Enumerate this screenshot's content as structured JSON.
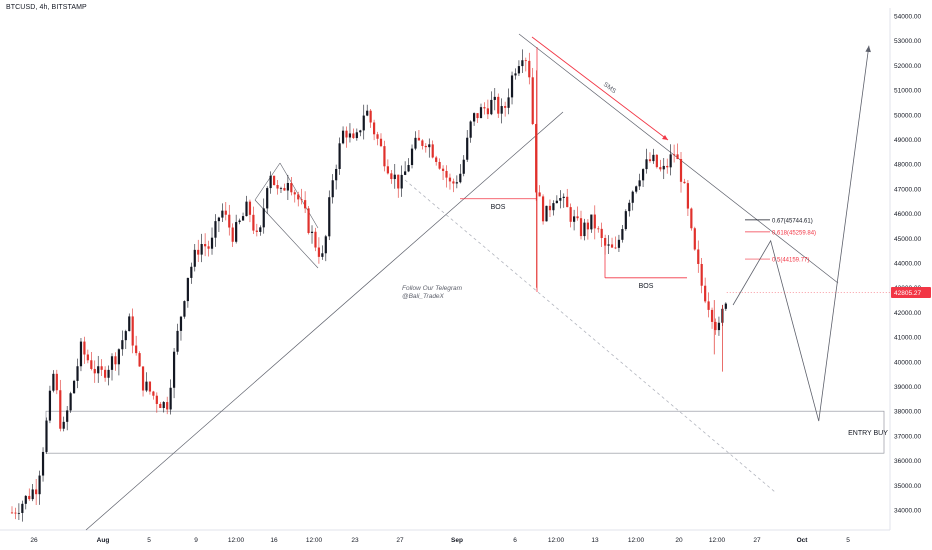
{
  "header": {
    "symbol_title": "BTCUSD, 4h, BITSTAMP"
  },
  "colors": {
    "up_candle": "#131722",
    "down_candle": "#e0312c",
    "price_tag_bg": "#f23645",
    "axis_text": "#131722",
    "annotation_red": "#f23645",
    "annotation_line": "#5d606b",
    "dashed_line": "#b2b5be",
    "background": "#ffffff"
  },
  "chart_data": {
    "type": "candlestick",
    "title": "BTCUSD, 4h, BITSTAMP",
    "current_price": 42805.27,
    "current_price_label": "42805.27",
    "y_axis": {
      "range": [
        33500,
        54500
      ],
      "tick_labels": [
        "54000.00",
        "53000.00",
        "52000.00",
        "51000.00",
        "50000.00",
        "49000.00",
        "48000.00",
        "47000.00",
        "46000.00",
        "45000.00",
        "44000.00",
        "43000.00",
        "42000.00",
        "41000.00",
        "40000.00",
        "39000.00",
        "38000.00",
        "37000.00",
        "36000.00",
        "35000.00",
        "34000.00"
      ],
      "tick_values": [
        54000,
        53000,
        52000,
        51000,
        50000,
        49000,
        48000,
        47000,
        46000,
        45000,
        44000,
        43000,
        42000,
        41000,
        40000,
        39000,
        38000,
        37000,
        36000,
        35000,
        34000
      ]
    },
    "x_axis": {
      "tick_labels": [
        "26",
        "Aug",
        "5",
        "9",
        "12:00",
        "16",
        "12:00",
        "23",
        "27",
        "Sep",
        "6",
        "12:00",
        "13",
        "12:00",
        "20",
        "12:00",
        "27",
        "Oct",
        "5"
      ],
      "tick_bold": [
        false,
        true,
        false,
        false,
        false,
        false,
        false,
        false,
        false,
        true,
        false,
        false,
        false,
        false,
        false,
        false,
        false,
        true,
        false
      ]
    },
    "price_path": [
      {
        "t": 0.0,
        "p": 33900
      },
      {
        "t": 0.6,
        "p": 34400
      },
      {
        "t": 1.2,
        "p": 35000
      },
      {
        "t": 1.6,
        "p": 37200
      },
      {
        "t": 2.0,
        "p": 39600
      },
      {
        "t": 2.4,
        "p": 37000
      },
      {
        "t": 2.9,
        "p": 39000
      },
      {
        "t": 3.3,
        "p": 40500
      },
      {
        "t": 4.2,
        "p": 39400
      },
      {
        "t": 5.0,
        "p": 40300
      },
      {
        "t": 5.6,
        "p": 41600
      },
      {
        "t": 6.2,
        "p": 39200
      },
      {
        "t": 6.9,
        "p": 38500
      },
      {
        "t": 7.4,
        "p": 38200
      },
      {
        "t": 7.8,
        "p": 40500
      },
      {
        "t": 8.4,
        "p": 43500
      },
      {
        "t": 9.0,
        "p": 44800
      },
      {
        "t": 9.5,
        "p": 44600
      },
      {
        "t": 10.0,
        "p": 46200
      },
      {
        "t": 10.6,
        "p": 45100
      },
      {
        "t": 11.3,
        "p": 46300
      },
      {
        "t": 11.8,
        "p": 44700
      },
      {
        "t": 12.3,
        "p": 47900
      },
      {
        "t": 12.8,
        "p": 46600
      },
      {
        "t": 13.2,
        "p": 47500
      },
      {
        "t": 13.9,
        "p": 46200
      },
      {
        "t": 14.4,
        "p": 45000
      },
      {
        "t": 14.9,
        "p": 44100
      },
      {
        "t": 15.3,
        "p": 47300
      },
      {
        "t": 15.9,
        "p": 49500
      },
      {
        "t": 16.4,
        "p": 48700
      },
      {
        "t": 16.9,
        "p": 50300
      },
      {
        "t": 17.3,
        "p": 49400
      },
      {
        "t": 17.8,
        "p": 48300
      },
      {
        "t": 18.2,
        "p": 47600
      },
      {
        "t": 18.6,
        "p": 47100
      },
      {
        "t": 19.2,
        "p": 48700
      },
      {
        "t": 19.8,
        "p": 49000
      },
      {
        "t": 20.4,
        "p": 48200
      },
      {
        "t": 21.0,
        "p": 47100
      },
      {
        "t": 21.5,
        "p": 47700
      },
      {
        "t": 22.0,
        "p": 49800
      },
      {
        "t": 22.5,
        "p": 50200
      },
      {
        "t": 23.0,
        "p": 50500
      },
      {
        "t": 23.5,
        "p": 50000
      },
      {
        "t": 24.0,
        "p": 51800
      },
      {
        "t": 24.5,
        "p": 52700
      },
      {
        "t": 24.8,
        "p": 51500
      },
      {
        "t": 25.1,
        "p": 46800
      },
      {
        "t": 25.5,
        "p": 45800
      },
      {
        "t": 26.0,
        "p": 46900
      },
      {
        "t": 26.6,
        "p": 46100
      },
      {
        "t": 27.2,
        "p": 45300
      },
      {
        "t": 27.8,
        "p": 45700
      },
      {
        "t": 28.3,
        "p": 44700
      },
      {
        "t": 28.9,
        "p": 44400
      },
      {
        "t": 29.4,
        "p": 46400
      },
      {
        "t": 30.0,
        "p": 47600
      },
      {
        "t": 30.6,
        "p": 48200
      },
      {
        "t": 31.1,
        "p": 47600
      },
      {
        "t": 31.7,
        "p": 48500
      },
      {
        "t": 32.1,
        "p": 47300
      },
      {
        "t": 32.6,
        "p": 44600
      },
      {
        "t": 33.0,
        "p": 43100
      },
      {
        "t": 33.4,
        "p": 42200
      },
      {
        "t": 33.8,
        "p": 41200
      },
      {
        "t": 34.2,
        "p": 42800
      }
    ],
    "projection_path": [
      {
        "t": 34.5,
        "p": 42300
      },
      {
        "t": 36.3,
        "p": 44900
      },
      {
        "t": 38.6,
        "p": 37600
      },
      {
        "t": 41.0,
        "p": 52800
      }
    ],
    "levels": {
      "entry_zone_top": 38000,
      "entry_zone_bottom": 36300,
      "bos_1": 46600,
      "bos_2": 43400
    },
    "fib_levels": [
      {
        "label": "0.67(45744.61)",
        "value": 45744.61,
        "style": "dark"
      },
      {
        "label": "0.618(45259.84)",
        "value": 45259.84,
        "style": "red"
      },
      {
        "label": "0.5(44159.77)",
        "value": 44159.77,
        "style": "red"
      }
    ],
    "annotations": {
      "bos_label_1": "BOS",
      "bos_label_2": "BOS",
      "sms_label": "SMS",
      "entry_label": "ENTRY BUY",
      "telegram_line1": "Follow Our Telegram",
      "telegram_line2": "@Bali_TradeX"
    }
  }
}
